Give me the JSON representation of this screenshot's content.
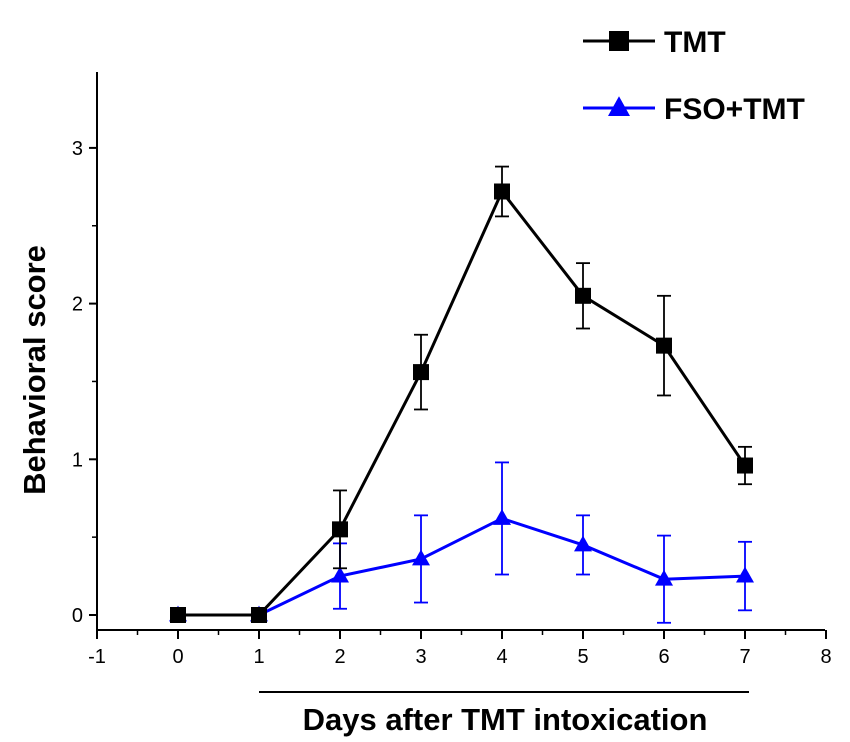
{
  "chart_data": {
    "type": "line",
    "xlabel": "Days after TMT intoxication",
    "ylabel": "Behavioral score",
    "xlim": [
      -1,
      8
    ],
    "ylim": [
      -0.1,
      3.5
    ],
    "x_ticks": [
      -1,
      0,
      1,
      2,
      3,
      4,
      5,
      6,
      7,
      8
    ],
    "y_ticks": [
      0,
      1,
      2,
      3
    ],
    "grid": false,
    "legend_position": "top-right",
    "series": [
      {
        "name": "TMT",
        "marker": "square",
        "color": "#000000",
        "x": [
          0,
          1,
          2,
          3,
          4,
          5,
          6,
          7
        ],
        "y": [
          0,
          0,
          0.55,
          1.56,
          2.72,
          2.05,
          1.73,
          0.96
        ],
        "error": [
          0,
          0,
          0.25,
          0.24,
          0.16,
          0.21,
          0.32,
          0.12
        ]
      },
      {
        "name": "FSO+TMT",
        "marker": "triangle",
        "color": "#0000ff",
        "x": [
          0,
          1,
          2,
          3,
          4,
          5,
          6,
          7
        ],
        "y": [
          0,
          0,
          0.25,
          0.36,
          0.62,
          0.45,
          0.23,
          0.25
        ],
        "error": [
          0,
          0,
          0.21,
          0.28,
          0.36,
          0.19,
          0.28,
          0.22
        ]
      }
    ]
  }
}
